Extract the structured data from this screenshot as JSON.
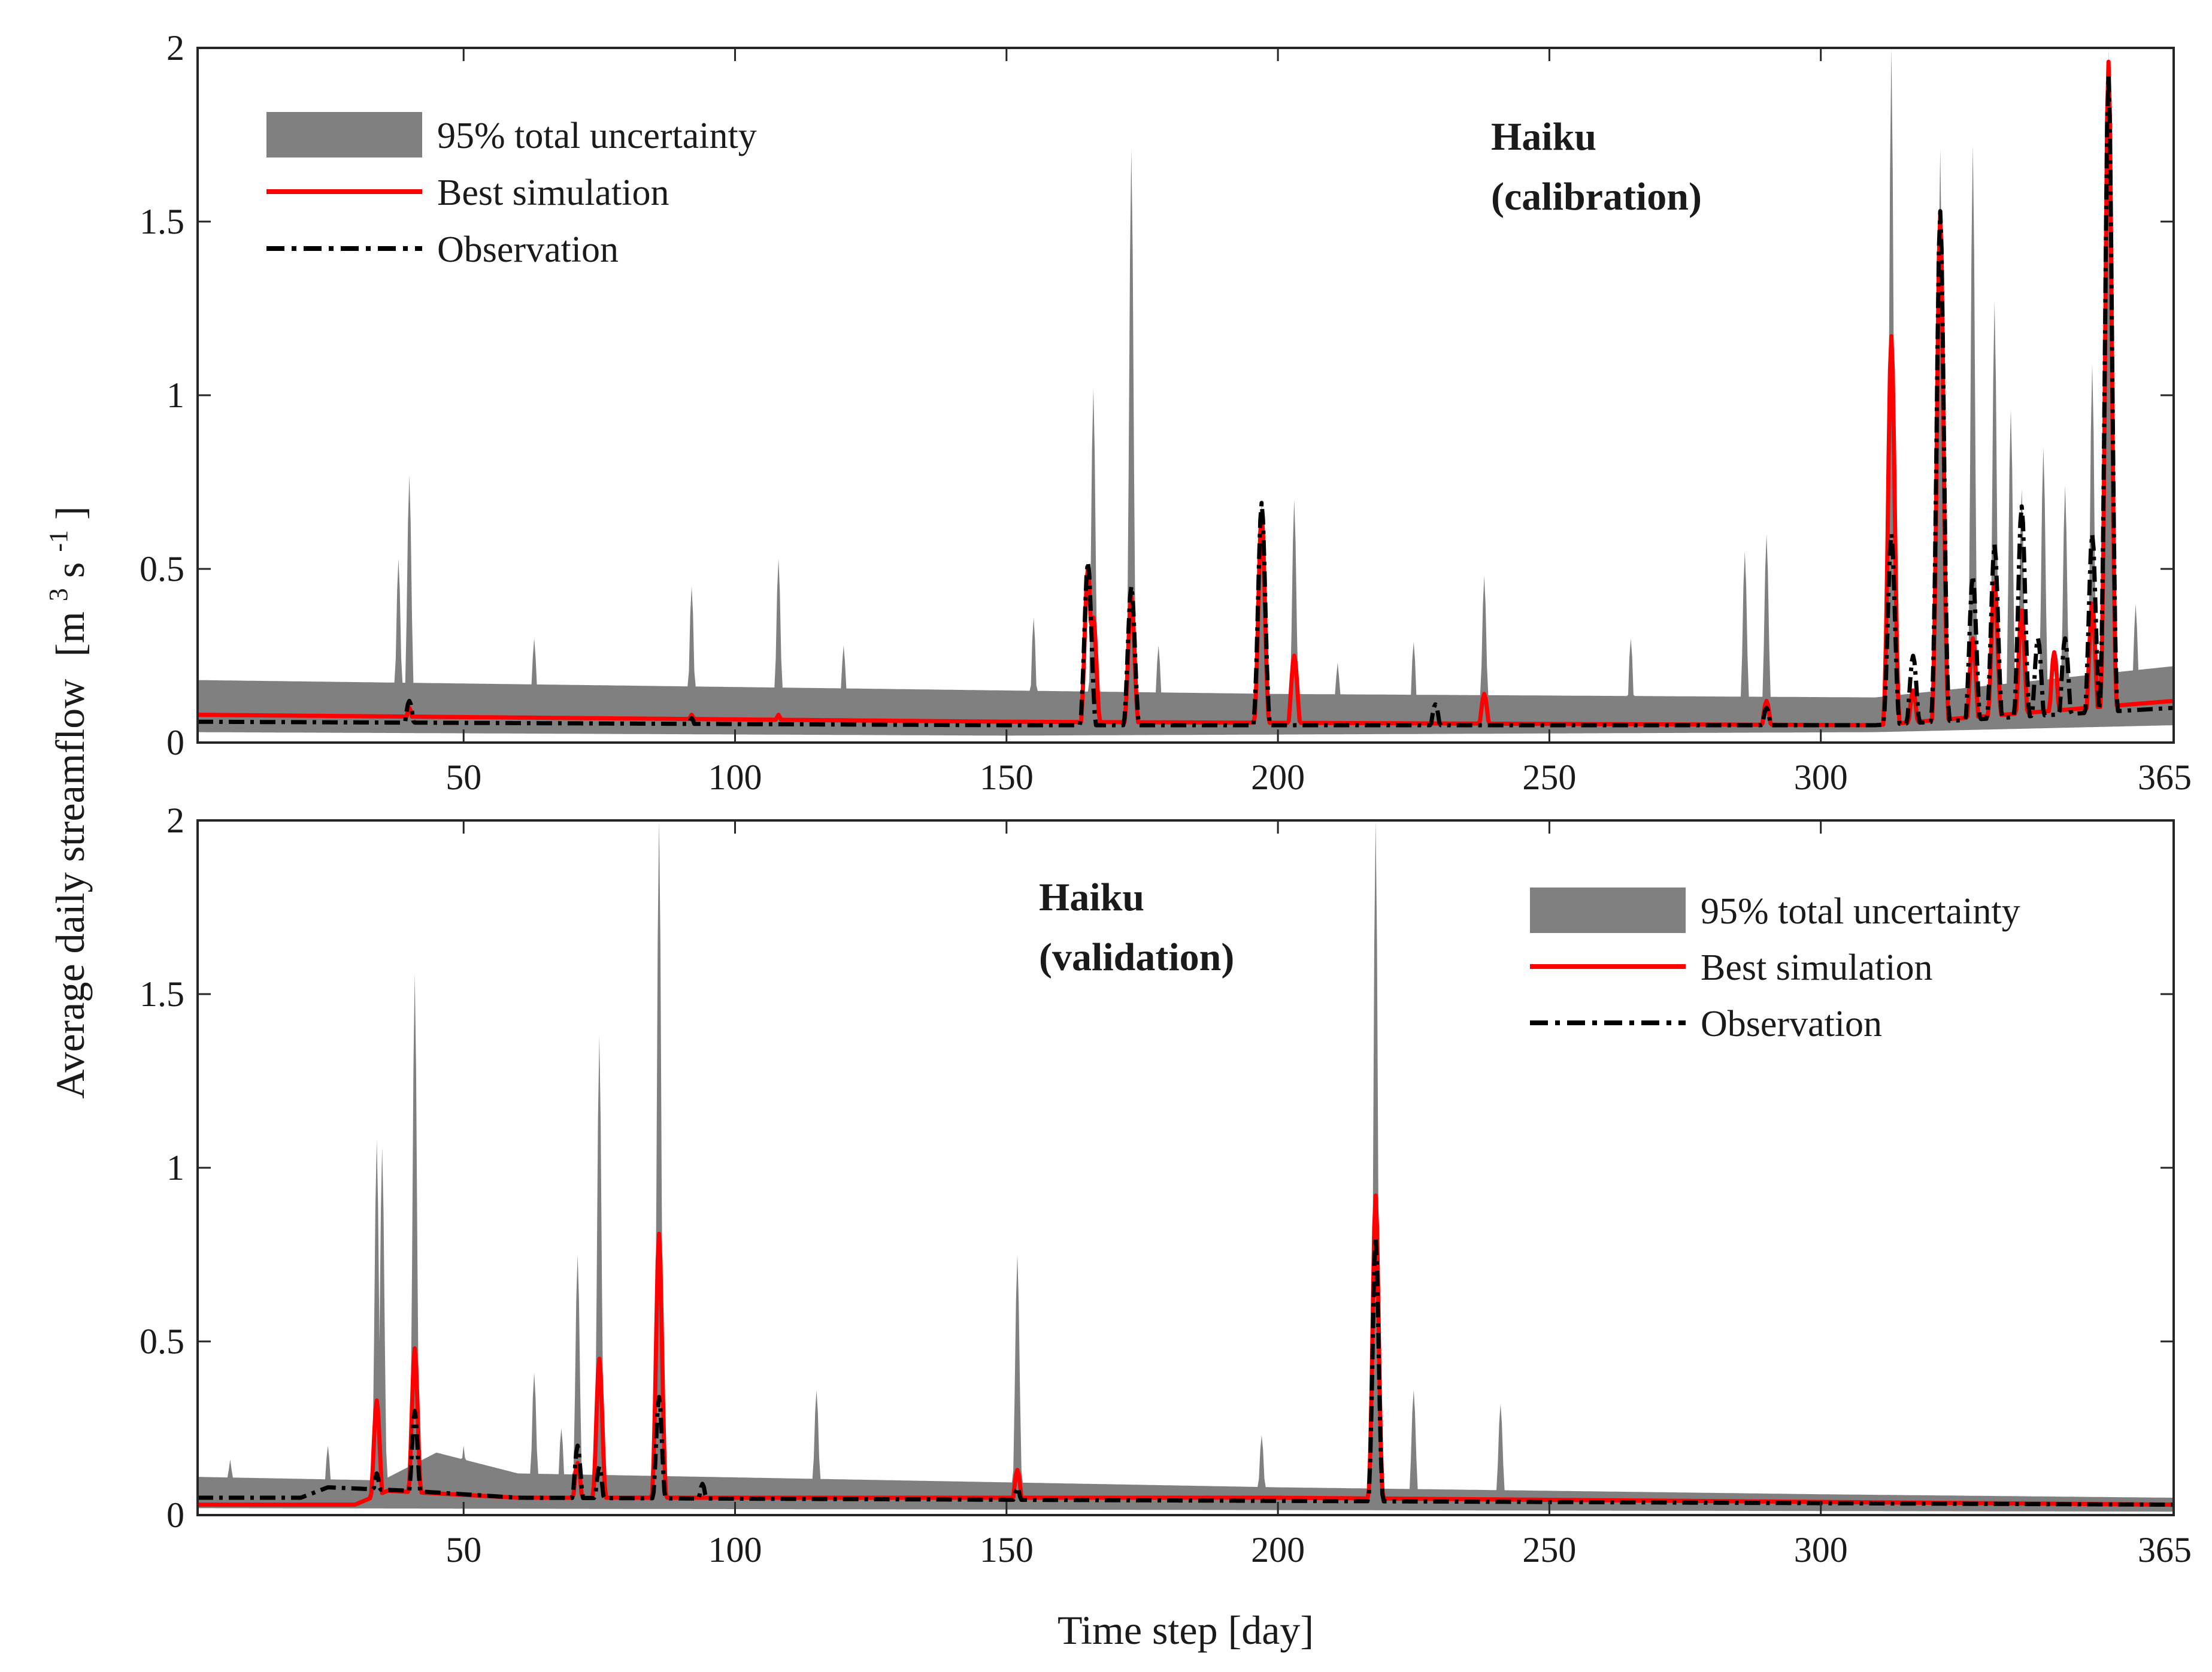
{
  "figure": {
    "y_axis_title": "Average daily streamflow",
    "y_axis_units_prefix": "[m",
    "y_axis_units_sup1": "3",
    "y_axis_units_mid": " s",
    "y_axis_units_sup2": "-1",
    "y_axis_units_suffix": "]",
    "x_axis_title": "Time step [day]"
  },
  "legend": {
    "band": "95% total uncertainty",
    "best": "Best simulation",
    "obs": "Observation"
  },
  "colors": {
    "band": "#808080",
    "best": "#ff0000",
    "obs": "#000000",
    "axis": "#262626"
  },
  "chart_data": [
    {
      "type": "area",
      "panel": "calibration",
      "station_name": "Haiku",
      "period": "(calibration)",
      "xlim": [
        1,
        365
      ],
      "ylim": [
        0,
        2
      ],
      "x_ticks": [
        50,
        100,
        150,
        200,
        250,
        300,
        365
      ],
      "y_ticks": [
        0,
        0.5,
        1,
        1.5,
        2
      ],
      "y_tick_labels": [
        "0",
        "0.5",
        "1",
        "1.5",
        "2"
      ],
      "legend_position": "top-left",
      "series": [
        {
          "name": "95% total uncertainty",
          "baseline_upper": [
            [
              1,
              0.18
            ],
            [
              100,
              0.16
            ],
            [
              200,
              0.14
            ],
            [
              310,
              0.13
            ],
            [
              365,
              0.22
            ]
          ],
          "baseline_lower": [
            [
              1,
              0.03
            ],
            [
              150,
              0.02
            ],
            [
              310,
              0.03
            ],
            [
              365,
              0.05
            ]
          ],
          "upper_peaks": [
            [
              38,
              0.53
            ],
            [
              40,
              0.77
            ],
            [
              63,
              0.3
            ],
            [
              92,
              0.45
            ],
            [
              108,
              0.53
            ],
            [
              120,
              0.28
            ],
            [
              155,
              0.36
            ],
            [
              166,
              1.02
            ],
            [
              173,
              1.71
            ],
            [
              178,
              0.28
            ],
            [
              197,
              0.7
            ],
            [
              203,
              0.7
            ],
            [
              211,
              0.23
            ],
            [
              225,
              0.29
            ],
            [
              238,
              0.48
            ],
            [
              265,
              0.3
            ],
            [
              286,
              0.55
            ],
            [
              290,
              0.6
            ],
            [
              313,
              2.0
            ],
            [
              322,
              1.71
            ],
            [
              328,
              1.72
            ],
            [
              332,
              1.27
            ],
            [
              335,
              0.96
            ],
            [
              337,
              0.73
            ],
            [
              341,
              0.85
            ],
            [
              345,
              0.74
            ],
            [
              350,
              1.09
            ],
            [
              353,
              2.0
            ],
            [
              358,
              0.4
            ]
          ],
          "peak_half_width": 0.8
        },
        {
          "name": "Best simulation",
          "baseline": [
            [
              1,
              0.08
            ],
            [
              150,
              0.06
            ],
            [
              310,
              0.05
            ],
            [
              365,
              0.12
            ]
          ],
          "peaks": [
            [
              40,
              0.1
            ],
            [
              92,
              0.08
            ],
            [
              108,
              0.08
            ],
            [
              165,
              0.5
            ],
            [
              166,
              0.36
            ],
            [
              173,
              0.42
            ],
            [
              197,
              0.66
            ],
            [
              203,
              0.25
            ],
            [
              238,
              0.14
            ],
            [
              290,
              0.12
            ],
            [
              313,
              1.17
            ],
            [
              317,
              0.15
            ],
            [
              322,
              1.52
            ],
            [
              328,
              0.3
            ],
            [
              332,
              0.46
            ],
            [
              337,
              0.38
            ],
            [
              343,
              0.26
            ],
            [
              350,
              0.4
            ],
            [
              353,
              1.96
            ]
          ],
          "peak_half_width": 1.2
        },
        {
          "name": "Observation",
          "baseline": [
            [
              1,
              0.06
            ],
            [
              150,
              0.05
            ],
            [
              310,
              0.05
            ],
            [
              365,
              0.1
            ]
          ],
          "peaks": [
            [
              40,
              0.12
            ],
            [
              92,
              0.07
            ],
            [
              165,
              0.52
            ],
            [
              173,
              0.45
            ],
            [
              197,
              0.69
            ],
            [
              229,
              0.11
            ],
            [
              290,
              0.1
            ],
            [
              313,
              0.6
            ],
            [
              317,
              0.25
            ],
            [
              322,
              1.53
            ],
            [
              328,
              0.48
            ],
            [
              332,
              0.57
            ],
            [
              337,
              0.68
            ],
            [
              340,
              0.3
            ],
            [
              345,
              0.3
            ],
            [
              350,
              0.6
            ],
            [
              353,
              1.92
            ]
          ],
          "peak_half_width": 1.3
        }
      ]
    },
    {
      "type": "area",
      "panel": "validation",
      "station_name": "Haiku",
      "period": "(validation)",
      "xlim": [
        1,
        365
      ],
      "ylim": [
        0,
        2
      ],
      "x_ticks": [
        50,
        100,
        150,
        200,
        250,
        300,
        365
      ],
      "y_ticks": [
        0,
        0.5,
        1,
        1.5,
        2
      ],
      "y_tick_labels": [
        "0",
        "0.5",
        "1",
        "1.5",
        "2"
      ],
      "legend_position": "top-right",
      "series": [
        {
          "name": "95% total uncertainty",
          "baseline_upper": [
            [
              1,
              0.11
            ],
            [
              35,
              0.1
            ],
            [
              45,
              0.18
            ],
            [
              60,
              0.12
            ],
            [
              200,
              0.08
            ],
            [
              300,
              0.06
            ],
            [
              365,
              0.05
            ]
          ],
          "baseline_lower": [
            [
              1,
              0.02
            ],
            [
              365,
              0.01
            ]
          ],
          "upper_peaks": [
            [
              7,
              0.16
            ],
            [
              25,
              0.2
            ],
            [
              34,
              1.08
            ],
            [
              35,
              1.06
            ],
            [
              41,
              1.56
            ],
            [
              50,
              0.2
            ],
            [
              63,
              0.41
            ],
            [
              68,
              0.25
            ],
            [
              71,
              0.75
            ],
            [
              75,
              1.38
            ],
            [
              86,
              2.0
            ],
            [
              115,
              0.36
            ],
            [
              152,
              0.75
            ],
            [
              197,
              0.23
            ],
            [
              218,
              2.0
            ],
            [
              225,
              0.36
            ],
            [
              241,
              0.32
            ]
          ],
          "peak_half_width": 0.8
        },
        {
          "name": "Best simulation",
          "baseline": [
            [
              1,
              0.03
            ],
            [
              30,
              0.03
            ],
            [
              36,
              0.07
            ],
            [
              60,
              0.05
            ],
            [
              200,
              0.05
            ],
            [
              365,
              0.03
            ]
          ],
          "peaks": [
            [
              34,
              0.33
            ],
            [
              41,
              0.48
            ],
            [
              71,
              0.15
            ],
            [
              75,
              0.45
            ],
            [
              86,
              0.81
            ],
            [
              152,
              0.13
            ],
            [
              218,
              0.92
            ]
          ],
          "peak_half_width": 1.1
        },
        {
          "name": "Observation",
          "baseline": [
            [
              1,
              0.05
            ],
            [
              20,
              0.05
            ],
            [
              25,
              0.08
            ],
            [
              40,
              0.07
            ],
            [
              60,
              0.05
            ],
            [
              215,
              0.04
            ],
            [
              365,
              0.03
            ]
          ],
          "peaks": [
            [
              34,
              0.12
            ],
            [
              41,
              0.3
            ],
            [
              71,
              0.2
            ],
            [
              75,
              0.14
            ],
            [
              86,
              0.34
            ],
            [
              94,
              0.09
            ],
            [
              152,
              0.08
            ],
            [
              218,
              0.8
            ]
          ],
          "peak_half_width": 1.1
        }
      ]
    }
  ]
}
